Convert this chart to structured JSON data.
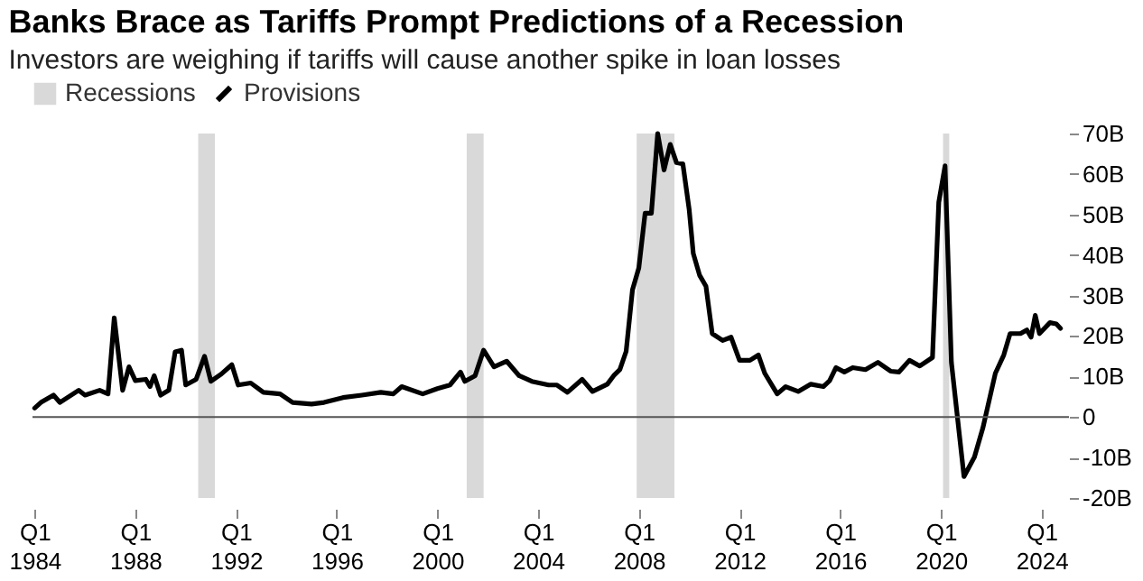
{
  "chart_data": {
    "type": "line",
    "title": "Banks Brace as Tariffs Prompt Predictions of a Recession",
    "subtitle": "Investors are weighing if tariffs will cause another spike in loan losses",
    "x": [
      "1984-01",
      "1984-04",
      "1984-10",
      "1985-01",
      "1985-10",
      "1986-01",
      "1986-08",
      "1986-12",
      "1987-03",
      "1987-07",
      "1987-10",
      "1988-01",
      "1988-06",
      "1988-08",
      "1988-10",
      "1989-01",
      "1989-05",
      "1989-08",
      "1989-11",
      "1990-01",
      "1990-06",
      "1990-10",
      "1991-01",
      "1991-06",
      "1991-11",
      "1992-02",
      "1992-08",
      "1993-02",
      "1993-10",
      "1994-04",
      "1995-01",
      "1995-07",
      "1996-04",
      "1997-01",
      "1997-10",
      "1998-04",
      "1998-08",
      "1999-06",
      "2000-01",
      "2000-07",
      "2000-12",
      "2001-02",
      "2001-07",
      "2001-11",
      "2002-04",
      "2002-10",
      "2003-04",
      "2003-10",
      "2004-06",
      "2004-10",
      "2005-03",
      "2005-10",
      "2006-03",
      "2006-10",
      "2007-01",
      "2007-04",
      "2007-07",
      "2007-10",
      "2008-01",
      "2008-04",
      "2008-07",
      "2008-10",
      "2009-01",
      "2009-04",
      "2009-07",
      "2009-10",
      "2010-01",
      "2010-03",
      "2010-06",
      "2010-09",
      "2010-12",
      "2011-05",
      "2011-09",
      "2012-01",
      "2012-06",
      "2012-10",
      "2013-01",
      "2013-07",
      "2013-11",
      "2014-05",
      "2014-11",
      "2015-05",
      "2015-08",
      "2015-11",
      "2016-03",
      "2016-07",
      "2017-01",
      "2017-07",
      "2018-01",
      "2018-05",
      "2018-10",
      "2019-03",
      "2019-09",
      "2019-12",
      "2020-03",
      "2020-06",
      "2020-12",
      "2021-05",
      "2021-09",
      "2022-03",
      "2022-07",
      "2022-10",
      "2023-03",
      "2023-06",
      "2023-08",
      "2023-10",
      "2023-12",
      "2024-05",
      "2024-08",
      "2024-10"
    ],
    "series": [
      {
        "name": "Provisions",
        "color": "#000000",
        "values": [
          2.2,
          3.6,
          5.4,
          3.6,
          6.6,
          5.4,
          6.6,
          5.7,
          24.5,
          6.6,
          12.4,
          9,
          9.3,
          7.5,
          10.2,
          5.4,
          6.6,
          16.1,
          16.5,
          7.9,
          9.3,
          15,
          8.8,
          10.6,
          12.9,
          7.9,
          8.4,
          6.1,
          5.7,
          3.6,
          3.2,
          3.6,
          4.8,
          5.4,
          6.1,
          5.7,
          7.5,
          5.7,
          7,
          7.9,
          11.1,
          8.8,
          10.2,
          16.5,
          12.4,
          13.8,
          10.2,
          8.8,
          7.9,
          7.9,
          6.1,
          9.3,
          6.3,
          8.1,
          10.2,
          11.7,
          16.2,
          31.4,
          36.8,
          50.3,
          50.3,
          70,
          61,
          67.3,
          62.8,
          62.5,
          51.2,
          40.4,
          35,
          32.3,
          20.6,
          18.9,
          19.7,
          14,
          14,
          15.3,
          10.8,
          5.7,
          7.5,
          6.3,
          8.1,
          7.5,
          9,
          12.2,
          11.1,
          12.2,
          11.7,
          13.5,
          11.3,
          11.1,
          14,
          12.6,
          14.7,
          53,
          62,
          13.5,
          -14.7,
          -9.9,
          -2.7,
          10.8,
          15.3,
          20.6,
          20.6,
          21.5,
          19.7,
          25.1,
          20.6,
          23.3,
          23,
          21.9
        ]
      }
    ],
    "bands": [
      {
        "axis": "x",
        "from": "1990-07",
        "to": "1991-03",
        "label": "Recessions",
        "color": "#d9d9d9"
      },
      {
        "axis": "x",
        "from": "2001-03",
        "to": "2001-11"
      },
      {
        "axis": "x",
        "from": "2007-12",
        "to": "2009-06"
      },
      {
        "axis": "x",
        "from": "2020-02",
        "to": "2020-05"
      }
    ],
    "ref_lines": [
      {
        "axis": "y",
        "value": 0,
        "color": "#555555"
      }
    ],
    "xlim": [
      "1983-12",
      "2025-02"
    ],
    "xticks": [
      {
        "value": "1984-01",
        "label": "Q1\n1984"
      },
      {
        "value": "1988-01",
        "label": "Q1\n1988"
      },
      {
        "value": "1992-01",
        "label": "Q1\n1992"
      },
      {
        "value": "1996-01",
        "label": "Q1\n1996"
      },
      {
        "value": "2000-01",
        "label": "Q1\n2000"
      },
      {
        "value": "2004-01",
        "label": "Q1\n2004"
      },
      {
        "value": "2008-01",
        "label": "Q1\n2008"
      },
      {
        "value": "2012-01",
        "label": "Q1\n2012"
      },
      {
        "value": "2016-01",
        "label": "Q1\n2016"
      },
      {
        "value": "2020-01",
        "label": "Q1\n2020"
      },
      {
        "value": "2024-01",
        "label": "Q1\n2024"
      }
    ],
    "ylim": [
      -20,
      70
    ],
    "yticks": [
      {
        "value": -20,
        "label": "-20B"
      },
      {
        "value": -10,
        "label": "-10B"
      },
      0,
      {
        "value": 10,
        "label": "10B"
      },
      {
        "value": 20,
        "label": "20B"
      },
      {
        "value": 30,
        "label": "30B"
      },
      {
        "value": 40,
        "label": "40B"
      },
      {
        "value": 50,
        "label": "50B"
      },
      {
        "value": 60,
        "label": "60B"
      },
      {
        "value": 70,
        "label": "70B"
      }
    ],
    "grid": false,
    "legend": "top left",
    "line_style": "solid",
    "marker": "none"
  }
}
